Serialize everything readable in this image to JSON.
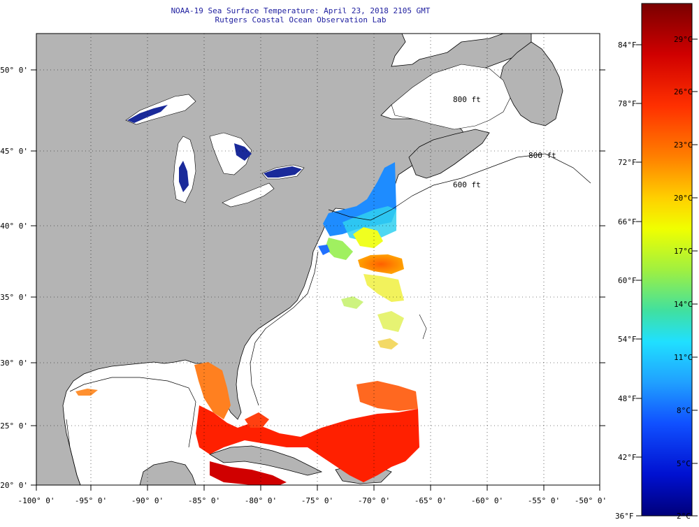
{
  "header": {
    "title": "NOAA-19 Sea Surface Temperature:  April 23, 2018 2105 GMT",
    "subtitle": "Rutgers Coastal Ocean Observation Lab"
  },
  "map": {
    "lon_labels": [
      "-100° 0'",
      "-95° 0'",
      "-90° 0'",
      "-85° 0'",
      "-80° 0'",
      "-75° 0'",
      "-70° 0'",
      "-65° 0'",
      "-60° 0'",
      "-55° 0'",
      "-50° 0'"
    ],
    "lat_labels": [
      "50° 0'",
      "45° 0'",
      "40° 0'",
      "35° 0'",
      "30° 0'",
      "25° 0'",
      "20° 0'"
    ],
    "isobath_labels": [
      "800 ft",
      "600 ft",
      "800 ft"
    ],
    "land_color": "#b4b4b4",
    "lake_color": "#1a2a9a"
  },
  "colorbar": {
    "fahrenheit": [
      "84°F",
      "78°F",
      "72°F",
      "66°F",
      "60°F",
      "54°F",
      "48°F",
      "42°F",
      "36°F"
    ],
    "celsius": [
      "29°C",
      "26°C",
      "23°C",
      "20°C",
      "17°C",
      "14°C",
      "11°C",
      "8°C",
      "5°C",
      "2°C"
    ],
    "stops": [
      "#7a0000",
      "#d00000",
      "#ff3000",
      "#ff8000",
      "#ffd000",
      "#f0ff00",
      "#a0f040",
      "#40e0a0",
      "#20e0ff",
      "#20a0ff",
      "#1050ff",
      "#0010d0",
      "#00007a"
    ]
  }
}
